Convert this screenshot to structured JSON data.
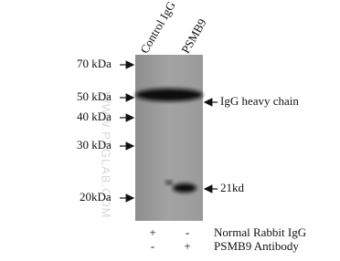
{
  "lanes": [
    "Control IgG",
    "PSMB9"
  ],
  "markers": [
    "70 kDa",
    "50 kDa",
    "40 kDa",
    "30 kDa",
    "20kDa"
  ],
  "annotations": [
    "IgG heavy chain",
    "21kd"
  ],
  "conditions": [
    {
      "label": "Normal Rabbit IgG",
      "signs": [
        "+",
        "-"
      ]
    },
    {
      "label": "PSMB9 Antibody",
      "signs": [
        "-",
        "+"
      ]
    }
  ],
  "watermark": "WWW.PTGLAB.COM"
}
